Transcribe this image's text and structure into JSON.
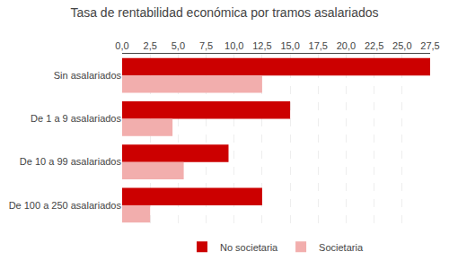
{
  "chart_data": {
    "type": "bar",
    "orientation": "horizontal",
    "title": "Tasa de rentabilidad económica por tramos asalariados",
    "categories": [
      "Sin asalariados",
      "De 1 a 9 asalariados",
      "De 10 a 99 asalariados",
      "De 100 a 250 asalariados"
    ],
    "series": [
      {
        "name": "No societaria",
        "color": "#CC0000",
        "values": [
          27.5,
          15.0,
          9.5,
          12.5
        ]
      },
      {
        "name": "Societaria",
        "color": "#F2AEAD",
        "values": [
          12.5,
          4.5,
          5.5,
          2.5
        ]
      }
    ],
    "xlim": [
      0,
      27.5
    ],
    "xticks": [
      {
        "value": 0.0,
        "label": "0,0"
      },
      {
        "value": 2.5,
        "label": "2,5"
      },
      {
        "value": 5.0,
        "label": "5,0"
      },
      {
        "value": 7.5,
        "label": "7,5"
      },
      {
        "value": 10.0,
        "label": "10,0"
      },
      {
        "value": 12.5,
        "label": "12,5"
      },
      {
        "value": 15.0,
        "label": "15,0"
      },
      {
        "value": 17.5,
        "label": "17,5"
      },
      {
        "value": 20.0,
        "label": "20,0"
      },
      {
        "value": 22.5,
        "label": "22,5"
      },
      {
        "value": 25.0,
        "label": "25,0"
      },
      {
        "value": 27.5,
        "label": "27,5"
      }
    ],
    "grid": true,
    "legend": "bottom"
  }
}
